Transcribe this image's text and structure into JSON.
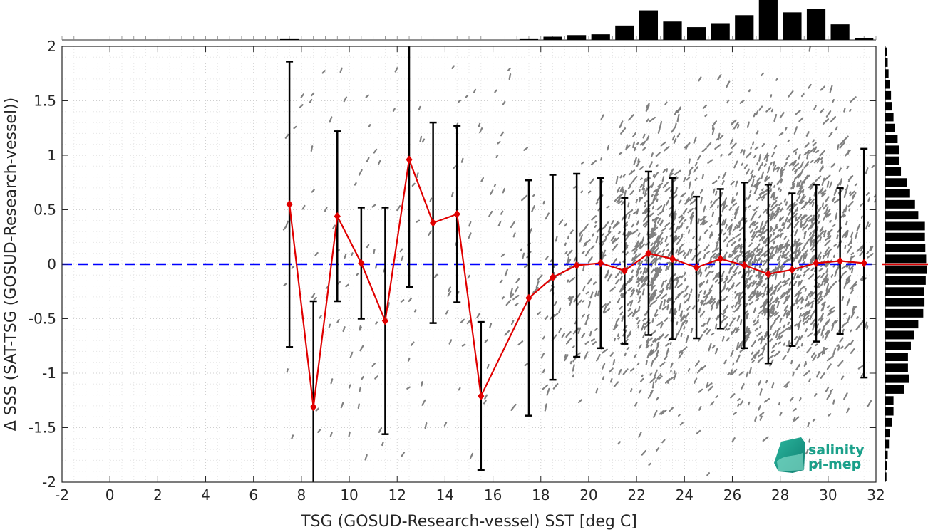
{
  "chart_data": {
    "type": "scatter",
    "title": "",
    "xlabel": "TSG (GOSUD-Research-vessel) SST [deg C]",
    "ylabel": "Δ SSS (SAT-TSG (GOSUD-Research-vessel))",
    "xlim": [
      -2,
      32
    ],
    "ylim": [
      -2,
      2
    ],
    "xticks": [
      -2,
      0,
      2,
      4,
      6,
      8,
      10,
      12,
      14,
      16,
      18,
      20,
      22,
      24,
      26,
      28,
      30,
      32
    ],
    "yticks": [
      -2,
      -1.5,
      -1,
      -0.5,
      0,
      0.5,
      1,
      1.5,
      2
    ],
    "xtick_labels": [
      "-2",
      "0",
      "2",
      "4",
      "6",
      "8",
      "10",
      "12",
      "14",
      "16",
      "18",
      "20",
      "22",
      "24",
      "26",
      "28",
      "30",
      "32"
    ],
    "ytick_labels": [
      "-2",
      "-1.5",
      "-1",
      "-0.5",
      "0",
      "0.5",
      "1",
      "1.5",
      "2"
    ],
    "grid": true,
    "reference_line": {
      "y": 0,
      "color": "#0000ff",
      "style": "dashed"
    },
    "scatter_color": "#808080",
    "binned_mean": {
      "color": "#e00000",
      "marker": "diamond",
      "x": [
        7.5,
        8.5,
        9.5,
        10.5,
        11.5,
        12.5,
        13.5,
        14.5,
        15.5,
        17.5,
        18.5,
        19.5,
        20.5,
        21.5,
        22.5,
        23.5,
        24.5,
        25.5,
        26.5,
        27.5,
        28.5,
        29.5,
        30.5,
        31.5
      ],
      "mean": [
        0.55,
        -1.31,
        0.44,
        0.01,
        -0.52,
        0.96,
        0.38,
        0.46,
        -1.21,
        -0.31,
        -0.12,
        -0.01,
        0.01,
        -0.06,
        0.1,
        0.05,
        -0.03,
        0.05,
        -0.01,
        -0.09,
        -0.05,
        0.01,
        0.03,
        0.01
      ],
      "std": [
        1.31,
        0.97,
        0.78,
        0.51,
        1.04,
        1.17,
        0.92,
        0.81,
        0.68,
        1.08,
        0.94,
        0.84,
        0.78,
        0.67,
        0.75,
        0.74,
        0.65,
        0.64,
        0.76,
        0.82,
        0.7,
        0.72,
        0.67,
        1.05
      ]
    },
    "top_histogram": {
      "color": "#000000",
      "x": [
        7.5,
        17.5,
        18.5,
        19.5,
        20.5,
        21.5,
        22.5,
        23.5,
        24.5,
        25.5,
        26.5,
        27.5,
        28.5,
        29.5,
        30.5,
        31.5
      ],
      "counts": [
        0.02,
        0.02,
        0.08,
        0.12,
        0.14,
        0.36,
        0.74,
        0.46,
        0.32,
        0.42,
        0.62,
        1.0,
        0.69,
        0.77,
        0.39,
        0.05
      ]
    },
    "right_histogram": {
      "color": "#000000",
      "marker_line": {
        "y": 0,
        "color": "#e00000"
      },
      "y": [
        1.95,
        1.85,
        1.75,
        1.65,
        1.55,
        1.45,
        1.35,
        1.25,
        1.15,
        1.05,
        0.95,
        0.85,
        0.75,
        0.65,
        0.55,
        0.45,
        0.35,
        0.25,
        0.15,
        0.05,
        -0.05,
        -0.15,
        -0.25,
        -0.35,
        -0.45,
        -0.55,
        -0.65,
        -0.75,
        -0.85,
        -0.95,
        -1.05,
        -1.15,
        -1.25,
        -1.35,
        -1.45,
        -1.55,
        -1.65,
        -1.75,
        -1.85,
        -1.95
      ],
      "counts": [
        0.05,
        0.06,
        0.08,
        0.12,
        0.14,
        0.16,
        0.2,
        0.24,
        0.3,
        0.34,
        0.34,
        0.38,
        0.52,
        0.6,
        0.72,
        0.8,
        0.96,
        0.96,
        0.97,
        0.99,
        1.0,
        0.98,
        0.94,
        0.95,
        0.92,
        0.8,
        0.7,
        0.62,
        0.55,
        0.55,
        0.58,
        0.45,
        0.2,
        0.2,
        0.16,
        0.12,
        0.09,
        0.06,
        0.04,
        0.03
      ]
    }
  },
  "logo": {
    "line1": "salinity",
    "line2": "pi-mep",
    "color": "#1aa08a"
  }
}
